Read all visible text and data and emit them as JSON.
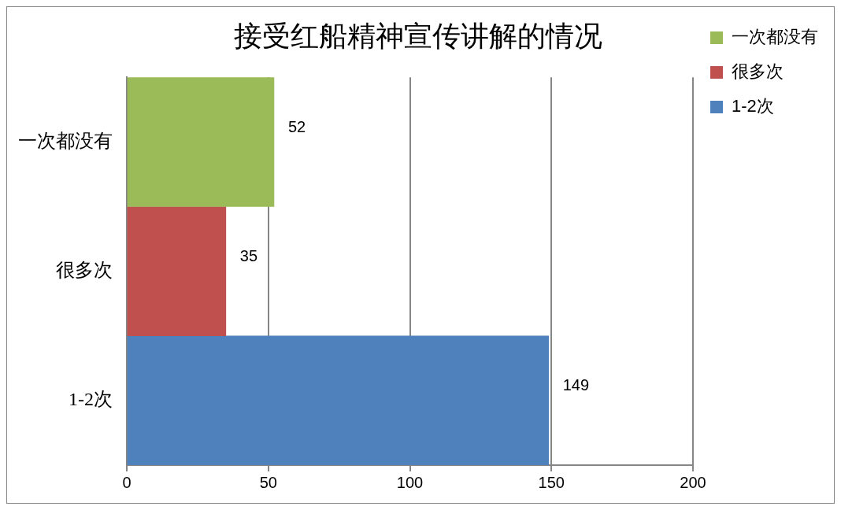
{
  "chart_data": {
    "type": "bar",
    "orientation": "horizontal",
    "title": "接受红船精神宣传讲解的情况",
    "categories": [
      "一次都没有",
      "很多次",
      "1-2次"
    ],
    "series": [
      {
        "name": "一次都没有",
        "color": "#9bbb59",
        "values": [
          52,
          null,
          null
        ]
      },
      {
        "name": "很多次",
        "color": "#c0504d",
        "values": [
          null,
          35,
          null
        ]
      },
      {
        "name": "1-2次",
        "color": "#4f81bd",
        "values": [
          null,
          null,
          149
        ]
      }
    ],
    "xlim": [
      0,
      200
    ],
    "xticks": [
      0,
      50,
      100,
      150,
      200
    ],
    "grid": "x",
    "legend": "right",
    "data_labels": true
  }
}
